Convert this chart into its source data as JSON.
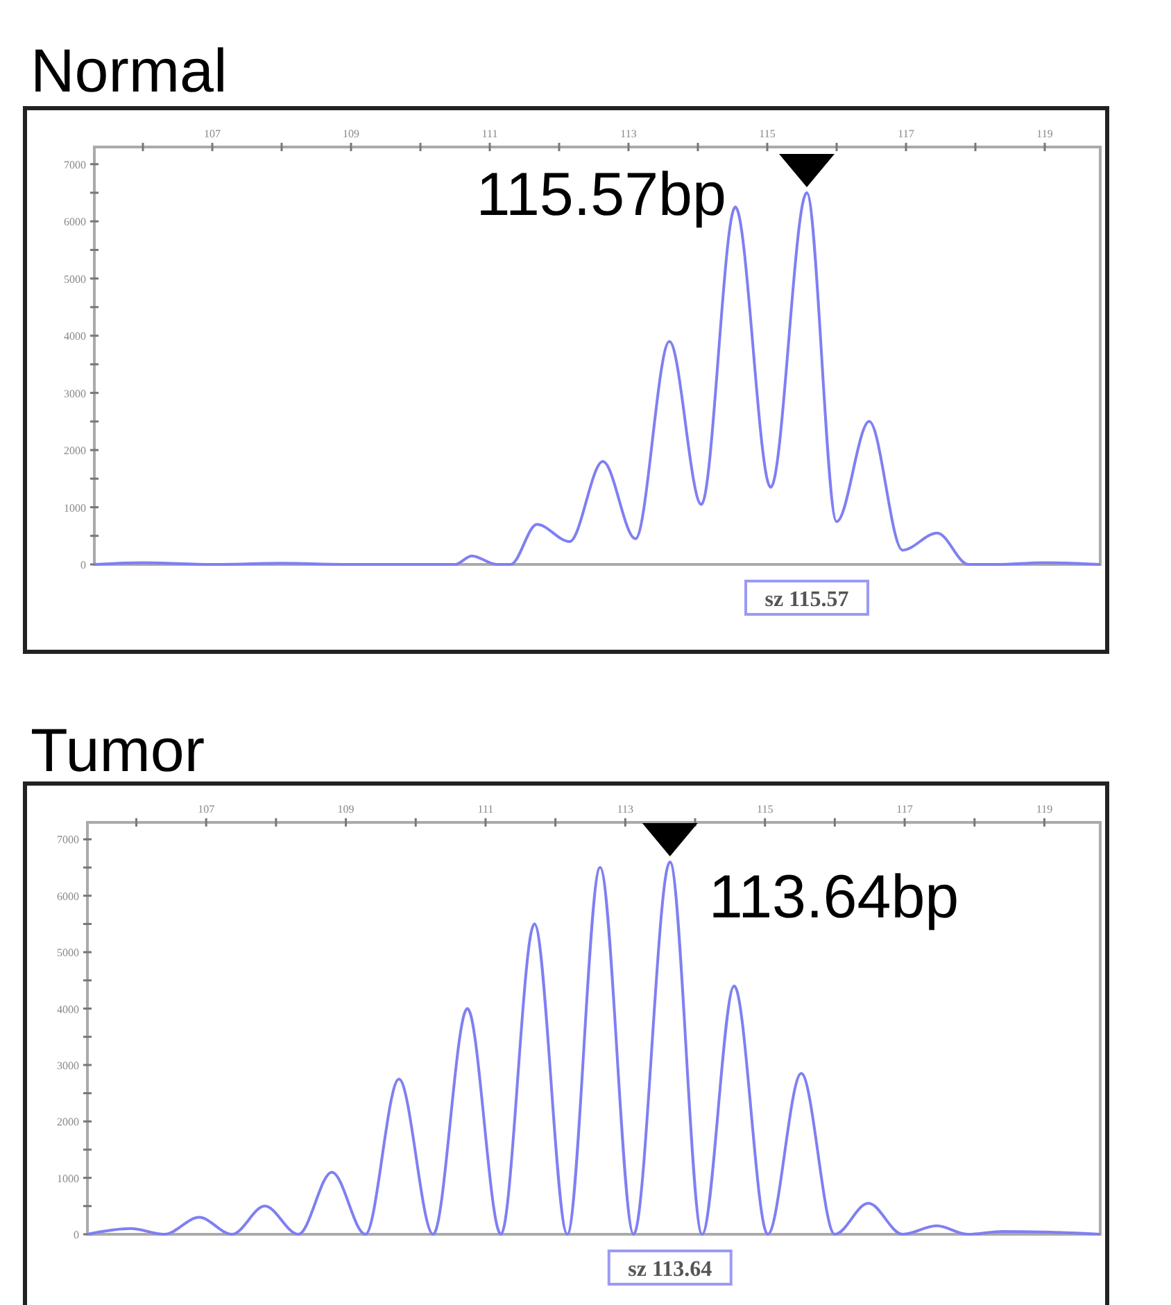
{
  "chart_data": [
    {
      "type": "line",
      "title": "Normal",
      "xlim": [
        105.3,
        119.8
      ],
      "ylim": [
        0,
        7300
      ],
      "grid": false,
      "marker": "none",
      "line_style": "solid",
      "xticks": [
        {
          "value": 106,
          "label": null
        },
        107,
        {
          "value": 108,
          "label": null
        },
        109,
        {
          "value": 110,
          "label": null
        },
        111,
        {
          "value": 112,
          "label": null
        },
        113,
        {
          "value": 114,
          "label": null
        },
        115,
        {
          "value": 116,
          "label": null
        },
        117,
        {
          "value": 118,
          "label": null
        },
        119
      ],
      "yticks": [
        0,
        {
          "value": 500,
          "label": null
        },
        1000,
        {
          "value": 1500,
          "label": null
        },
        2000,
        {
          "value": 2500,
          "label": null
        },
        3000,
        {
          "value": 3500,
          "label": null
        },
        4000,
        {
          "value": 4500,
          "label": null
        },
        5000,
        {
          "value": 5500,
          "label": null
        },
        6000,
        {
          "value": 6500,
          "label": null
        },
        7000
      ],
      "series": [
        {
          "color": "#7f7ff2",
          "x": [
            105.3,
            106,
            107,
            108,
            109,
            110,
            110.5,
            110.74,
            111.1,
            111.3,
            111.68,
            112.15,
            112.63,
            113.1,
            113.59,
            114.05,
            114.54,
            115.05,
            115.57,
            116,
            116.47,
            116.95,
            117.45,
            117.9,
            118.3,
            119,
            119.8
          ],
          "values": [
            0,
            30,
            0,
            20,
            0,
            0,
            0,
            150,
            0,
            0,
            700,
            400,
            1800,
            450,
            3900,
            1050,
            6250,
            1350,
            6500,
            750,
            2500,
            250,
            550,
            0,
            0,
            30,
            0
          ]
        }
      ],
      "annotations": [
        "115.57bp",
        "sz 115.57"
      ]
    },
    {
      "type": "line",
      "title": "Tumor",
      "xlim": [
        105.3,
        119.8
      ],
      "ylim": [
        0,
        7300
      ],
      "grid": false,
      "marker": "none",
      "line_style": "solid",
      "xticks": [
        {
          "value": 106,
          "label": null
        },
        107,
        {
          "value": 108,
          "label": null
        },
        109,
        {
          "value": 110,
          "label": null
        },
        111,
        {
          "value": 112,
          "label": null
        },
        113,
        {
          "value": 114,
          "label": null
        },
        115,
        {
          "value": 116,
          "label": null
        },
        117,
        {
          "value": 118,
          "label": null
        },
        119
      ],
      "yticks": [
        0,
        {
          "value": 500,
          "label": null
        },
        1000,
        {
          "value": 1500,
          "label": null
        },
        2000,
        {
          "value": 2500,
          "label": null
        },
        3000,
        {
          "value": 3500,
          "label": null
        },
        4000,
        {
          "value": 4500,
          "label": null
        },
        5000,
        {
          "value": 5500,
          "label": null
        },
        6000,
        {
          "value": 6500,
          "label": null
        },
        7000
      ],
      "series": [
        {
          "color": "#7f7ff2",
          "x": [
            105.3,
            105.92,
            106.4,
            106.9,
            107.37,
            107.84,
            108.32,
            108.8,
            109.28,
            109.76,
            110.25,
            110.74,
            111.22,
            111.7,
            112.17,
            112.64,
            113.12,
            113.64,
            114.1,
            114.56,
            115.04,
            115.52,
            116,
            116.48,
            116.97,
            117.46,
            117.9,
            118.4,
            119,
            119.8
          ],
          "values": [
            0,
            100,
            0,
            300,
            0,
            500,
            0,
            1100,
            0,
            2750,
            0,
            4000,
            0,
            5500,
            0,
            6500,
            0,
            6600,
            0,
            4400,
            0,
            2850,
            0,
            550,
            0,
            150,
            0,
            50,
            40,
            0
          ]
        }
      ],
      "annotations": [
        "113.64bp",
        "sz 113.64"
      ]
    }
  ]
}
